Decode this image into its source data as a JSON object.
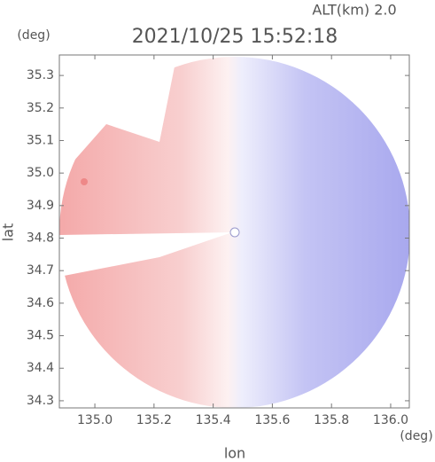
{
  "chart_data": {
    "type": "radar_map",
    "title": "2021/10/25 15:52:18",
    "altitude": "ALT(km) 2.0",
    "y_unit": "(deg)",
    "x_unit": "(deg)",
    "ylabel": "lat",
    "xlabel": "lon",
    "xlim": [
      134.88,
      136.063
    ],
    "ylim": [
      34.278,
      35.363
    ],
    "xticks": [
      {
        "value": 135.0,
        "label": "135.0"
      },
      135.2,
      135.4,
      135.6,
      135.8,
      {
        "value": 136.0,
        "label": "136.0"
      }
    ],
    "yticks": [
      34.3,
      34.4,
      34.5,
      34.6,
      34.7,
      34.8,
      34.9,
      {
        "value": 35.0,
        "label": "35.0"
      },
      35.1,
      35.2,
      35.3
    ]
  }
}
